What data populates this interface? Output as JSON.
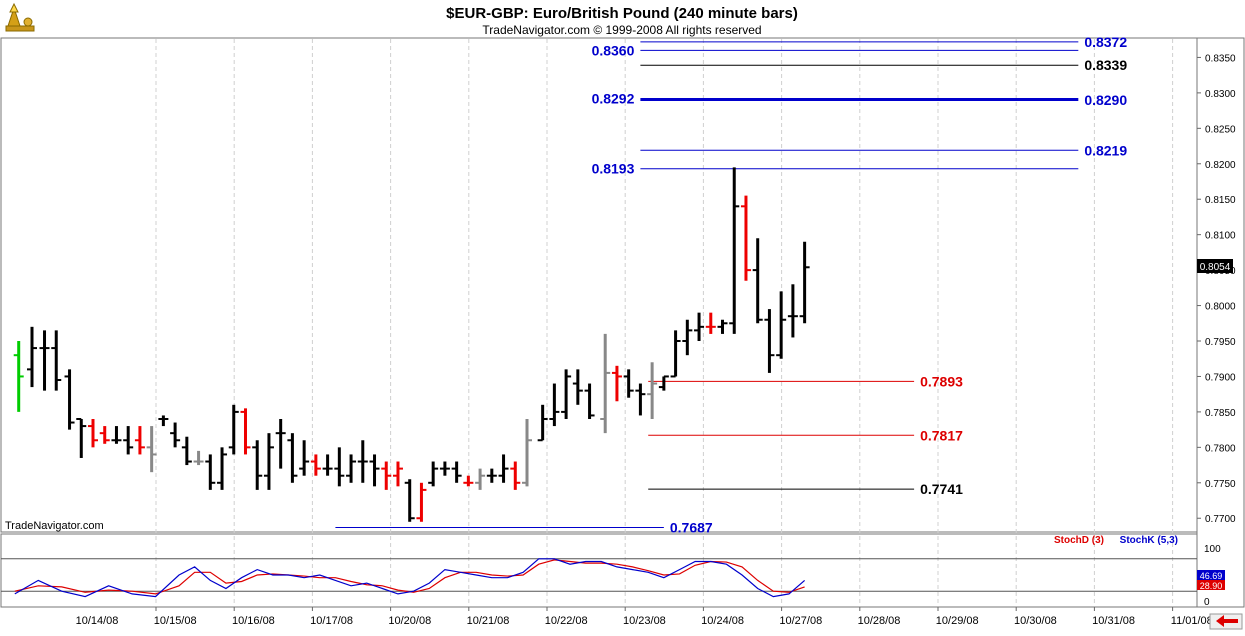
{
  "header": {
    "title": "$EUR-GBP:  Euro/British Pound  (240 minute bars)",
    "copyright": "TradeNavigator.com © 1999-2008 All rights reserved"
  },
  "watermark": "TradeNavigator.com",
  "colors": {
    "blue_level": "#0000cc",
    "red_level": "#dd0000",
    "black_level": "#000000",
    "bar_black": "#000000",
    "bar_red": "#ee0000",
    "bar_gray": "#888888",
    "bar_green": "#00cc00",
    "stoch_d": "#dd0000",
    "stoch_k": "#0000cc"
  },
  "chart_data": {
    "type": "ohlc",
    "price_axis": {
      "ticks": [
        "0.8350",
        "0.8300",
        "0.8250",
        "0.8200",
        "0.8150",
        "0.8100",
        "0.8050",
        "0.8000",
        "0.7950",
        "0.7900",
        "0.7850",
        "0.7800",
        "0.7750",
        "0.7700"
      ],
      "range": [
        0.7682,
        0.8376
      ],
      "last_price": "0.8054"
    },
    "x_axis": {
      "labels": [
        "10/14/08",
        "10/15/08",
        "10/16/08",
        "10/17/08",
        "10/20/08",
        "10/21/08",
        "10/22/08",
        "10/23/08",
        "10/24/08",
        "10/27/08",
        "10/28/08",
        "10/29/08",
        "10/30/08",
        "10/31/08",
        "11/01/08"
      ]
    },
    "levels": [
      {
        "value": 0.8372,
        "label": "0.8372",
        "color": "blue",
        "start_day": 7.0,
        "end_day": 12.6,
        "label_side": "right",
        "weight": 1
      },
      {
        "value": 0.836,
        "label": "0.8360",
        "color": "blue",
        "start_day": 7.0,
        "end_day": 12.6,
        "label_side": "left",
        "weight": 1
      },
      {
        "value": 0.8339,
        "label": "0.8339",
        "color": "black",
        "start_day": 7.0,
        "end_day": 12.6,
        "label_side": "right",
        "weight": 1
      },
      {
        "value": 0.8292,
        "label": "0.8292",
        "color": "blue",
        "start_day": 7.0,
        "end_day": 12.6,
        "label_side": "left",
        "weight": 1
      },
      {
        "value": 0.829,
        "label": "0.8290",
        "color": "blue",
        "start_day": 7.0,
        "end_day": 12.6,
        "label_side": "right",
        "weight": 2
      },
      {
        "value": 0.8219,
        "label": "0.8219",
        "color": "blue",
        "start_day": 7.0,
        "end_day": 12.6,
        "label_side": "right",
        "weight": 1
      },
      {
        "value": 0.8193,
        "label": "0.8193",
        "color": "blue",
        "start_day": 7.0,
        "end_day": 12.6,
        "label_side": "left",
        "weight": 1
      },
      {
        "value": 0.7893,
        "label": "0.7893",
        "color": "red",
        "start_day": 7.1,
        "end_day": 10.5,
        "label_side": "right",
        "weight": 1
      },
      {
        "value": 0.7817,
        "label": "0.7817",
        "color": "red",
        "start_day": 7.1,
        "end_day": 10.5,
        "label_side": "right",
        "weight": 1
      },
      {
        "value": 0.7741,
        "label": "0.7741",
        "color": "black",
        "start_day": 7.1,
        "end_day": 10.5,
        "label_side": "right",
        "weight": 1
      },
      {
        "value": 0.7687,
        "label": "0.7687",
        "color": "blue",
        "start_day": 3.1,
        "end_day": 7.3,
        "label_side": "right",
        "weight": 1
      }
    ],
    "bars": [
      {
        "t": -0.95,
        "o": 0.793,
        "h": 0.795,
        "l": 0.785,
        "c": 0.79,
        "col": "green"
      },
      {
        "t": -0.78,
        "o": 0.791,
        "h": 0.797,
        "l": 0.7885,
        "c": 0.794,
        "col": "black"
      },
      {
        "t": -0.62,
        "o": 0.794,
        "h": 0.7965,
        "l": 0.788,
        "c": 0.794,
        "col": "black"
      },
      {
        "t": -0.47,
        "o": 0.794,
        "h": 0.7965,
        "l": 0.788,
        "c": 0.7895,
        "col": "black"
      },
      {
        "t": -0.3,
        "o": 0.79,
        "h": 0.791,
        "l": 0.7825,
        "c": 0.7835,
        "col": "black"
      },
      {
        "t": -0.15,
        "o": 0.784,
        "h": 0.784,
        "l": 0.7785,
        "c": 0.783,
        "col": "black"
      },
      {
        "t": 0.0,
        "o": 0.783,
        "h": 0.784,
        "l": 0.78,
        "c": 0.781,
        "col": "red"
      },
      {
        "t": 0.15,
        "o": 0.782,
        "h": 0.783,
        "l": 0.7805,
        "c": 0.781,
        "col": "red"
      },
      {
        "t": 0.3,
        "o": 0.781,
        "h": 0.783,
        "l": 0.7805,
        "c": 0.781,
        "col": "black"
      },
      {
        "t": 0.45,
        "o": 0.781,
        "h": 0.783,
        "l": 0.779,
        "c": 0.78,
        "col": "black"
      },
      {
        "t": 0.6,
        "o": 0.781,
        "h": 0.783,
        "l": 0.779,
        "c": 0.78,
        "col": "red"
      },
      {
        "t": 0.75,
        "o": 0.78,
        "h": 0.783,
        "l": 0.7765,
        "c": 0.779,
        "col": "gray"
      },
      {
        "t": 0.9,
        "o": 0.784,
        "h": 0.7845,
        "l": 0.783,
        "c": 0.784,
        "col": "black"
      },
      {
        "t": 1.05,
        "o": 0.782,
        "h": 0.7835,
        "l": 0.78,
        "c": 0.781,
        "col": "black"
      },
      {
        "t": 1.2,
        "o": 0.78,
        "h": 0.7815,
        "l": 0.7775,
        "c": 0.778,
        "col": "black"
      },
      {
        "t": 1.35,
        "o": 0.778,
        "h": 0.7795,
        "l": 0.7775,
        "c": 0.778,
        "col": "gray"
      },
      {
        "t": 1.5,
        "o": 0.778,
        "h": 0.779,
        "l": 0.774,
        "c": 0.775,
        "col": "black"
      },
      {
        "t": 1.65,
        "o": 0.775,
        "h": 0.78,
        "l": 0.774,
        "c": 0.779,
        "col": "black"
      },
      {
        "t": 1.8,
        "o": 0.78,
        "h": 0.786,
        "l": 0.779,
        "c": 0.785,
        "col": "black"
      },
      {
        "t": 1.95,
        "o": 0.785,
        "h": 0.7855,
        "l": 0.779,
        "c": 0.78,
        "col": "red"
      },
      {
        "t": 2.1,
        "o": 0.78,
        "h": 0.781,
        "l": 0.774,
        "c": 0.776,
        "col": "black"
      },
      {
        "t": 2.25,
        "o": 0.776,
        "h": 0.782,
        "l": 0.774,
        "c": 0.78,
        "col": "black"
      },
      {
        "t": 2.4,
        "o": 0.782,
        "h": 0.784,
        "l": 0.777,
        "c": 0.782,
        "col": "black"
      },
      {
        "t": 2.55,
        "o": 0.781,
        "h": 0.782,
        "l": 0.775,
        "c": 0.776,
        "col": "black"
      },
      {
        "t": 2.7,
        "o": 0.777,
        "h": 0.781,
        "l": 0.776,
        "c": 0.778,
        "col": "black"
      },
      {
        "t": 2.85,
        "o": 0.778,
        "h": 0.779,
        "l": 0.776,
        "c": 0.777,
        "col": "red"
      },
      {
        "t": 3.0,
        "o": 0.777,
        "h": 0.779,
        "l": 0.776,
        "c": 0.777,
        "col": "black"
      },
      {
        "t": 3.15,
        "o": 0.777,
        "h": 0.78,
        "l": 0.7745,
        "c": 0.776,
        "col": "black"
      },
      {
        "t": 3.3,
        "o": 0.776,
        "h": 0.779,
        "l": 0.775,
        "c": 0.778,
        "col": "black"
      },
      {
        "t": 3.45,
        "o": 0.778,
        "h": 0.781,
        "l": 0.775,
        "c": 0.778,
        "col": "black"
      },
      {
        "t": 3.6,
        "o": 0.778,
        "h": 0.779,
        "l": 0.7745,
        "c": 0.777,
        "col": "black"
      },
      {
        "t": 3.75,
        "o": 0.777,
        "h": 0.778,
        "l": 0.774,
        "c": 0.776,
        "col": "red"
      },
      {
        "t": 3.9,
        "o": 0.776,
        "h": 0.778,
        "l": 0.7745,
        "c": 0.777,
        "col": "red"
      },
      {
        "t": 4.05,
        "o": 0.775,
        "h": 0.7755,
        "l": 0.7695,
        "c": 0.77,
        "col": "black"
      },
      {
        "t": 4.2,
        "o": 0.77,
        "h": 0.775,
        "l": 0.7695,
        "c": 0.774,
        "col": "red"
      },
      {
        "t": 4.35,
        "o": 0.775,
        "h": 0.778,
        "l": 0.7745,
        "c": 0.777,
        "col": "black"
      },
      {
        "t": 4.5,
        "o": 0.777,
        "h": 0.778,
        "l": 0.776,
        "c": 0.777,
        "col": "black"
      },
      {
        "t": 4.65,
        "o": 0.777,
        "h": 0.778,
        "l": 0.775,
        "c": 0.776,
        "col": "black"
      },
      {
        "t": 4.8,
        "o": 0.775,
        "h": 0.776,
        "l": 0.7745,
        "c": 0.775,
        "col": "red"
      },
      {
        "t": 4.95,
        "o": 0.775,
        "h": 0.777,
        "l": 0.774,
        "c": 0.776,
        "col": "gray"
      },
      {
        "t": 5.1,
        "o": 0.776,
        "h": 0.777,
        "l": 0.775,
        "c": 0.776,
        "col": "black"
      },
      {
        "t": 5.25,
        "o": 0.776,
        "h": 0.779,
        "l": 0.775,
        "c": 0.777,
        "col": "black"
      },
      {
        "t": 5.4,
        "o": 0.777,
        "h": 0.778,
        "l": 0.774,
        "c": 0.775,
        "col": "red"
      },
      {
        "t": 5.55,
        "o": 0.775,
        "h": 0.784,
        "l": 0.7745,
        "c": 0.781,
        "col": "gray"
      },
      {
        "t": 5.75,
        "o": 0.781,
        "h": 0.786,
        "l": 0.781,
        "c": 0.784,
        "col": "black"
      },
      {
        "t": 5.9,
        "o": 0.784,
        "h": 0.789,
        "l": 0.783,
        "c": 0.785,
        "col": "black"
      },
      {
        "t": 6.05,
        "o": 0.785,
        "h": 0.791,
        "l": 0.784,
        "c": 0.79,
        "col": "black"
      },
      {
        "t": 6.2,
        "o": 0.789,
        "h": 0.791,
        "l": 0.786,
        "c": 0.788,
        "col": "black"
      },
      {
        "t": 6.35,
        "o": 0.788,
        "h": 0.789,
        "l": 0.784,
        "c": 0.7845,
        "col": "black"
      },
      {
        "t": 6.55,
        "o": 0.784,
        "h": 0.796,
        "l": 0.782,
        "c": 0.7905,
        "col": "gray"
      },
      {
        "t": 6.7,
        "o": 0.7905,
        "h": 0.7915,
        "l": 0.7865,
        "c": 0.79,
        "col": "red"
      },
      {
        "t": 6.85,
        "o": 0.79,
        "h": 0.791,
        "l": 0.787,
        "c": 0.788,
        "col": "black"
      },
      {
        "t": 7.0,
        "o": 0.788,
        "h": 0.789,
        "l": 0.7845,
        "c": 0.7875,
        "col": "black"
      },
      {
        "t": 7.15,
        "o": 0.7875,
        "h": 0.792,
        "l": 0.784,
        "c": 0.789,
        "col": "gray"
      },
      {
        "t": 7.3,
        "o": 0.7885,
        "h": 0.79,
        "l": 0.788,
        "c": 0.79,
        "col": "black"
      },
      {
        "t": 7.45,
        "o": 0.79,
        "h": 0.7965,
        "l": 0.79,
        "c": 0.795,
        "col": "black"
      },
      {
        "t": 7.6,
        "o": 0.795,
        "h": 0.798,
        "l": 0.793,
        "c": 0.7965,
        "col": "black"
      },
      {
        "t": 7.75,
        "o": 0.7965,
        "h": 0.799,
        "l": 0.795,
        "c": 0.797,
        "col": "black"
      },
      {
        "t": 7.9,
        "o": 0.797,
        "h": 0.799,
        "l": 0.796,
        "c": 0.797,
        "col": "red"
      },
      {
        "t": 8.05,
        "o": 0.797,
        "h": 0.798,
        "l": 0.796,
        "c": 0.7975,
        "col": "black"
      },
      {
        "t": 8.2,
        "o": 0.7975,
        "h": 0.8195,
        "l": 0.796,
        "c": 0.814,
        "col": "black"
      },
      {
        "t": 8.35,
        "o": 0.814,
        "h": 0.8155,
        "l": 0.8035,
        "c": 0.805,
        "col": "red"
      },
      {
        "t": 8.5,
        "o": 0.805,
        "h": 0.8095,
        "l": 0.7975,
        "c": 0.798,
        "col": "black"
      },
      {
        "t": 8.65,
        "o": 0.798,
        "h": 0.7995,
        "l": 0.7905,
        "c": 0.793,
        "col": "black"
      },
      {
        "t": 8.8,
        "o": 0.793,
        "h": 0.802,
        "l": 0.7925,
        "c": 0.798,
        "col": "black"
      },
      {
        "t": 8.95,
        "o": 0.7985,
        "h": 0.803,
        "l": 0.7955,
        "c": 0.7985,
        "col": "black"
      },
      {
        "t": 9.1,
        "o": 0.7985,
        "h": 0.809,
        "l": 0.7975,
        "c": 0.8054,
        "col": "black"
      }
    ],
    "stochastic": {
      "legend": [
        {
          "name": "StochD (3)",
          "color": "red"
        },
        {
          "name": "StochK (5,3)",
          "color": "blue"
        }
      ],
      "axis_ticks": [
        "100",
        "0"
      ],
      "upper_level": 80,
      "lower_level": 20,
      "stoch_d_value": "28.90",
      "stoch_k_value": "46.69",
      "k": [
        [
          -1.0,
          15
        ],
        [
          -0.7,
          40
        ],
        [
          -0.4,
          20
        ],
        [
          -0.1,
          10
        ],
        [
          0.2,
          30
        ],
        [
          0.5,
          15
        ],
        [
          0.8,
          10
        ],
        [
          1.1,
          50
        ],
        [
          1.3,
          65
        ],
        [
          1.5,
          40
        ],
        [
          1.7,
          25
        ],
        [
          1.9,
          45
        ],
        [
          2.1,
          60
        ],
        [
          2.3,
          50
        ],
        [
          2.5,
          50
        ],
        [
          2.7,
          45
        ],
        [
          2.9,
          50
        ],
        [
          3.1,
          40
        ],
        [
          3.3,
          30
        ],
        [
          3.5,
          35
        ],
        [
          3.7,
          25
        ],
        [
          3.9,
          15
        ],
        [
          4.1,
          20
        ],
        [
          4.3,
          35
        ],
        [
          4.5,
          60
        ],
        [
          4.7,
          55
        ],
        [
          4.9,
          50
        ],
        [
          5.1,
          45
        ],
        [
          5.3,
          45
        ],
        [
          5.5,
          55
        ],
        [
          5.7,
          80
        ],
        [
          5.9,
          80
        ],
        [
          6.1,
          70
        ],
        [
          6.3,
          75
        ],
        [
          6.5,
          75
        ],
        [
          6.7,
          65
        ],
        [
          6.9,
          60
        ],
        [
          7.1,
          55
        ],
        [
          7.3,
          45
        ],
        [
          7.5,
          60
        ],
        [
          7.7,
          75
        ],
        [
          7.9,
          75
        ],
        [
          8.1,
          70
        ],
        [
          8.3,
          50
        ],
        [
          8.5,
          25
        ],
        [
          8.7,
          10
        ],
        [
          8.9,
          15
        ],
        [
          9.1,
          40
        ]
      ],
      "d": [
        [
          -1.0,
          20
        ],
        [
          -0.7,
          30
        ],
        [
          -0.4,
          28
        ],
        [
          -0.1,
          18
        ],
        [
          0.2,
          22
        ],
        [
          0.5,
          20
        ],
        [
          0.8,
          15
        ],
        [
          1.1,
          30
        ],
        [
          1.3,
          55
        ],
        [
          1.5,
          55
        ],
        [
          1.7,
          35
        ],
        [
          1.9,
          38
        ],
        [
          2.1,
          50
        ],
        [
          2.3,
          52
        ],
        [
          2.5,
          50
        ],
        [
          2.7,
          48
        ],
        [
          2.9,
          45
        ],
        [
          3.1,
          45
        ],
        [
          3.3,
          38
        ],
        [
          3.5,
          32
        ],
        [
          3.7,
          30
        ],
        [
          3.9,
          22
        ],
        [
          4.1,
          18
        ],
        [
          4.3,
          25
        ],
        [
          4.5,
          45
        ],
        [
          4.7,
          55
        ],
        [
          4.9,
          55
        ],
        [
          5.1,
          50
        ],
        [
          5.3,
          48
        ],
        [
          5.5,
          50
        ],
        [
          5.7,
          70
        ],
        [
          5.9,
          78
        ],
        [
          6.1,
          75
        ],
        [
          6.3,
          72
        ],
        [
          6.5,
          72
        ],
        [
          6.7,
          70
        ],
        [
          6.9,
          65
        ],
        [
          7.1,
          58
        ],
        [
          7.3,
          50
        ],
        [
          7.5,
          52
        ],
        [
          7.7,
          68
        ],
        [
          7.9,
          75
        ],
        [
          8.1,
          74
        ],
        [
          8.3,
          65
        ],
        [
          8.5,
          40
        ],
        [
          8.7,
          20
        ],
        [
          8.9,
          18
        ],
        [
          9.1,
          28
        ]
      ]
    }
  }
}
